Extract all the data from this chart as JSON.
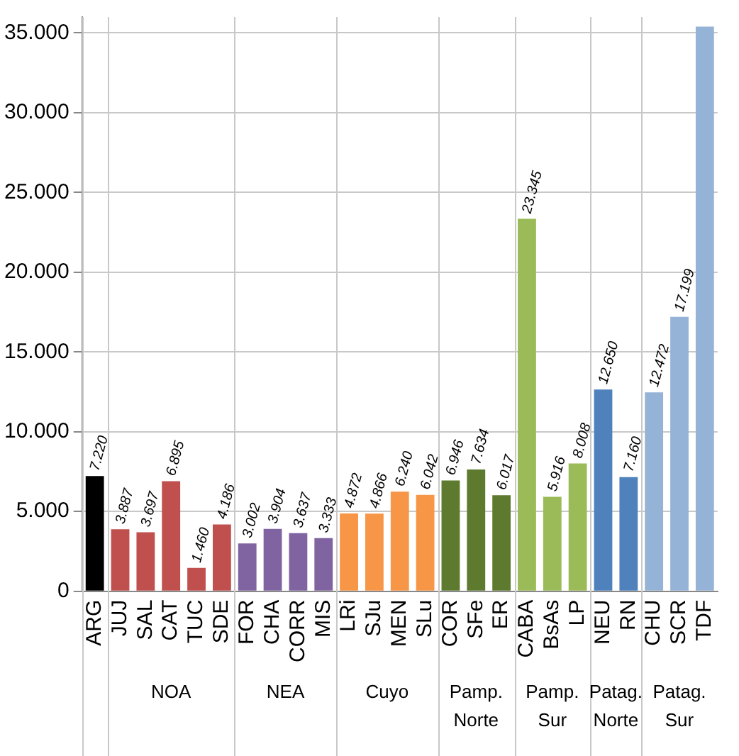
{
  "chart_data": {
    "type": "bar",
    "categories": [
      "ARG",
      "JUJ",
      "SAL",
      "CAT",
      "TUC",
      "SDE",
      "FOR",
      "CHA",
      "CORR",
      "MIS",
      "LRi",
      "SJu",
      "MEN",
      "SLu",
      "COR",
      "SFe",
      "ER",
      "CABA",
      "BsAs",
      "LP",
      "NEU",
      "RN",
      "CHU",
      "SCR",
      "TDF"
    ],
    "values": [
      7220,
      3887,
      3697,
      6895,
      1460,
      4186,
      3002,
      3904,
      3637,
      3333,
      4872,
      4866,
      6240,
      6042,
      6946,
      7634,
      6017,
      23345,
      5916,
      8008,
      12650,
      7160,
      12472,
      17199,
      35400
    ],
    "value_labels": [
      "7.220",
      "3.887",
      "3.697",
      "6.895",
      "1.460",
      "4.186",
      "3.002",
      "3.904",
      "3.637",
      "3.333",
      "4.872",
      "4.866",
      "6.240",
      "6.042",
      "6.946",
      "7.634",
      "6.017",
      "23.345",
      "5.916",
      "8.008",
      "12.650",
      "7.160",
      "12.472",
      "17.199",
      null
    ],
    "colors": [
      "#000000",
      "#c0504d",
      "#c0504d",
      "#c0504d",
      "#c0504d",
      "#c0504d",
      "#8064a2",
      "#8064a2",
      "#8064a2",
      "#8064a2",
      "#f79646",
      "#f79646",
      "#f79646",
      "#f79646",
      "#5e7a2e",
      "#5e7a2e",
      "#5e7a2e",
      "#9bbb59",
      "#9bbb59",
      "#9bbb59",
      "#4f81bd",
      "#4f81bd",
      "#95b3d7",
      "#95b3d7",
      "#95b3d7"
    ],
    "ylim": [
      0,
      36000
    ],
    "yticks": [
      {
        "value": 0,
        "label": "0"
      },
      {
        "value": 5000,
        "label": "5.000"
      },
      {
        "value": 10000,
        "label": "10.000"
      },
      {
        "value": 15000,
        "label": "15.000"
      },
      {
        "value": 20000,
        "label": "20.000"
      },
      {
        "value": 25000,
        "label": "25.000"
      },
      {
        "value": 30000,
        "label": "30.000"
      },
      {
        "value": 35000,
        "label": "35.000"
      }
    ],
    "grid": "y",
    "legend": false,
    "annotations": [
      "NOA",
      "NEA",
      "Cuyo",
      "Pamp. Norte",
      "Pamp. Sur",
      "Patag. Norte",
      "Patag. Sur"
    ]
  }
}
